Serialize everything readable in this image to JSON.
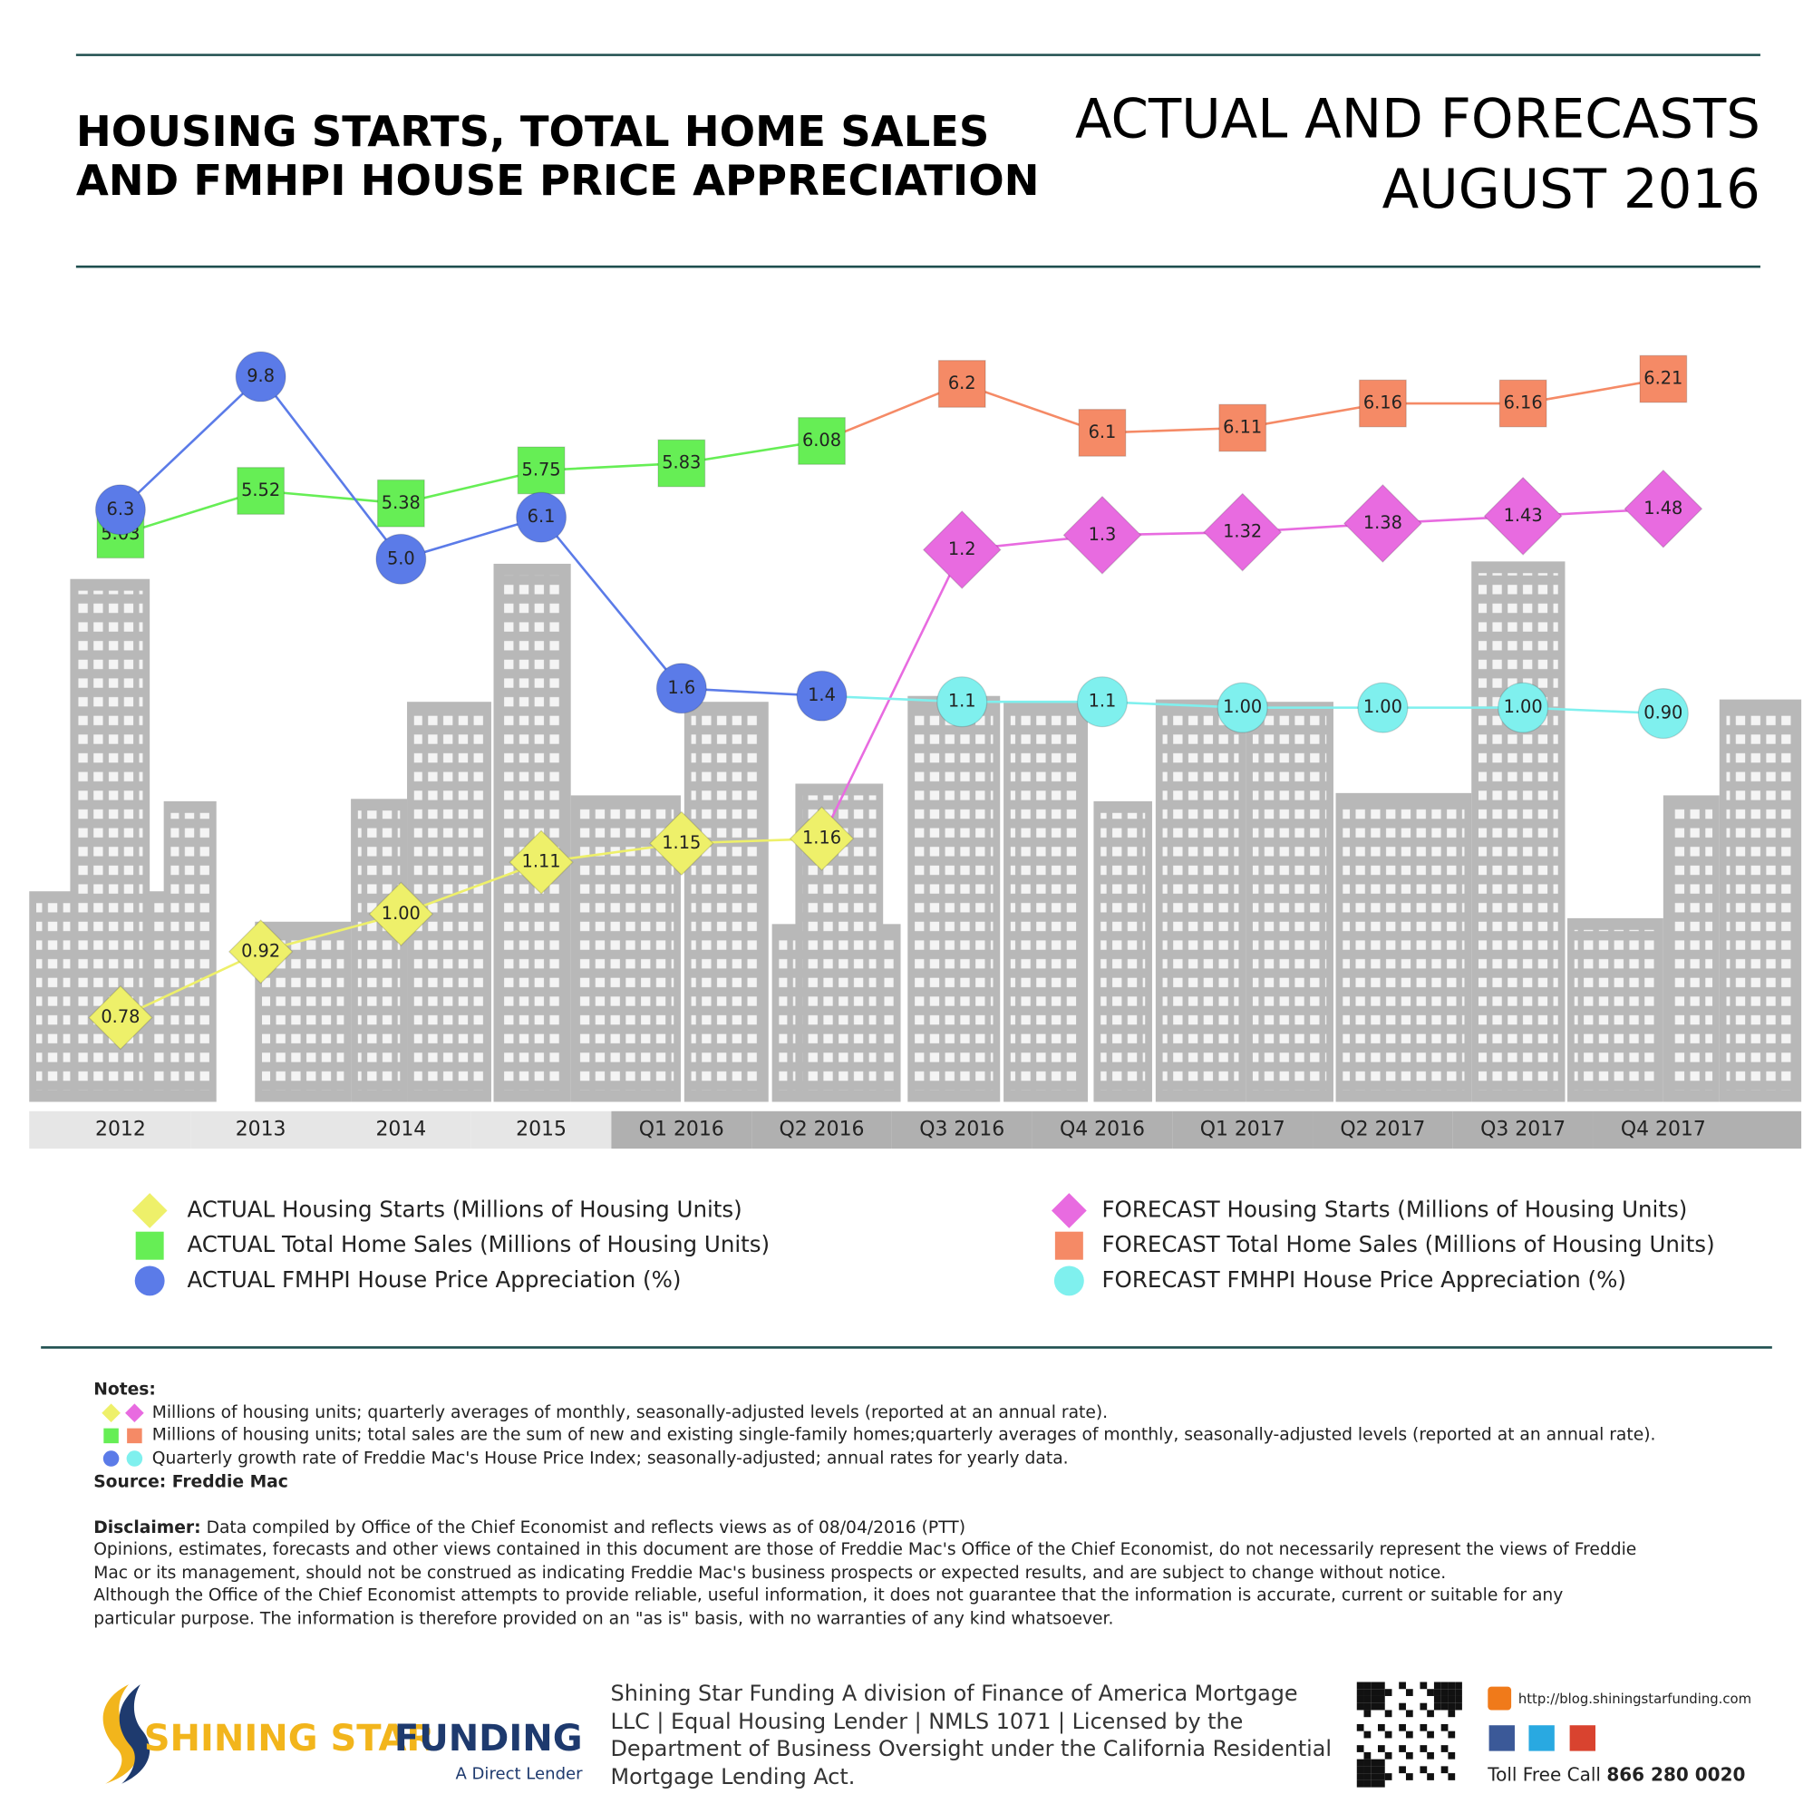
{
  "header": {
    "title_lines": [
      "HOUSING STARTS, TOTAL HOME SALES",
      "AND FMHPI HOUSE PRICE APPRECIATION"
    ],
    "subtitle_lines": [
      "ACTUAL AND FORECASTS",
      "AUGUST 2016"
    ]
  },
  "chart_data": {
    "type": "line",
    "categories": [
      "2012",
      "2013",
      "2014",
      "2015",
      "Q1 2016",
      "Q2 2016",
      "Q3 2016",
      "Q4 2016",
      "Q1 2017",
      "Q2 2017",
      "Q3 2017",
      "Q4 2017"
    ],
    "series": [
      {
        "name": "ACTUAL Housing Starts (Millions of Housing Units)",
        "color": "#eef06a",
        "marker": "diamond",
        "values": [
          0.78,
          0.92,
          1.0,
          1.11,
          1.15,
          1.16,
          null,
          null,
          null,
          null,
          null,
          null
        ],
        "value_labels": [
          "0.78",
          "0.92",
          "1.00",
          "1.11",
          "1.15",
          "1.16",
          null,
          null,
          null,
          null,
          null,
          null
        ]
      },
      {
        "name": "ACTUAL Total Home Sales (Millions of Housing Units)",
        "color": "#66ee55",
        "marker": "square",
        "values": [
          5.03,
          5.52,
          5.38,
          5.75,
          5.83,
          6.08,
          null,
          null,
          null,
          null,
          null,
          null
        ]
      },
      {
        "name": "ACTUAL FMHPI House Price Appreciation (%)",
        "color": "#5b7be8",
        "marker": "circle",
        "values": [
          6.3,
          9.8,
          5.0,
          6.1,
          1.6,
          1.4,
          null,
          null,
          null,
          null,
          null,
          null
        ],
        "value_labels": [
          "6.3",
          "9.8",
          "5.0",
          "6.1",
          "1.6",
          "1.4",
          null,
          null,
          null,
          null,
          null,
          null
        ]
      },
      {
        "name": "FORECAST Housing Starts (Millions of Housing Units)",
        "color": "#e86be0",
        "marker": "diamond",
        "values": [
          null,
          null,
          null,
          null,
          null,
          null,
          1.2,
          1.3,
          1.32,
          1.38,
          1.43,
          1.48
        ]
      },
      {
        "name": "FORECAST Total Home Sales (Millions of Housing Units)",
        "color": "#f58a66",
        "marker": "square",
        "values": [
          null,
          null,
          null,
          null,
          null,
          null,
          6.2,
          6.1,
          6.11,
          6.16,
          6.16,
          6.21
        ]
      },
      {
        "name": "FORECAST FMHPI House Price Appreciation (%)",
        "color": "#7ff0ee",
        "marker": "circle",
        "values": [
          null,
          null,
          null,
          null,
          null,
          null,
          1.1,
          1.1,
          1.0,
          1.0,
          1.0,
          0.9
        ],
        "value_labels": [
          null,
          null,
          null,
          null,
          null,
          null,
          "1.1",
          "1.1",
          "1.00",
          "1.00",
          "1.00",
          "0.90"
        ]
      }
    ]
  },
  "notes": {
    "heading": "Notes:",
    "lines": [
      "Millions of housing units; quarterly averages of monthly, seasonally-adjusted levels (reported at an annual rate).",
      "Millions of housing units; total sales are the sum of new and existing single-family homes;quarterly averages of monthly, seasonally-adjusted levels (reported at an annual rate).",
      "Quarterly growth rate of Freddie Mac's House Price Index; seasonally-adjusted; annual rates for yearly data."
    ],
    "source": "Source: Freddie Mac"
  },
  "disclaimer": {
    "label": "Disclaimer:",
    "first": "Data compiled by Office of the Chief Economist and reflects views as of 08/04/2016 (PTT)",
    "lines": [
      "Opinions, estimates, forecasts and other views contained in this document are those of Freddie Mac's Office of the Chief Economist, do not necessarily represent the views of Freddie",
      "Mac or its management, should not be construed as indicating Freddie Mac's business prospects or expected results, and are subject to change without notice.",
      "Although the Office of the Chief Economist attempts to provide reliable, useful information, it does not guarantee that the information is accurate, current or suitable for any",
      "particular purpose. The information is therefore provided on an \"as is\" basis, with no warranties of any kind whatsoever."
    ]
  },
  "footer": {
    "logo_a": "SHINING STAR",
    "logo_b": "FUNDING",
    "tagline": "A Direct Lender",
    "lines": [
      "Shining Star Funding A division of Finance of America Mortgage",
      "LLC | Equal Housing Lender | NMLS 1071 | Licensed by the",
      "Department of Business Oversight under the California Residential",
      "Mortgage Lending Act."
    ],
    "blog": "http://blog.shiningstarfunding.com",
    "toll_label": "Toll Free Call",
    "toll_number": "866 280 0020"
  }
}
